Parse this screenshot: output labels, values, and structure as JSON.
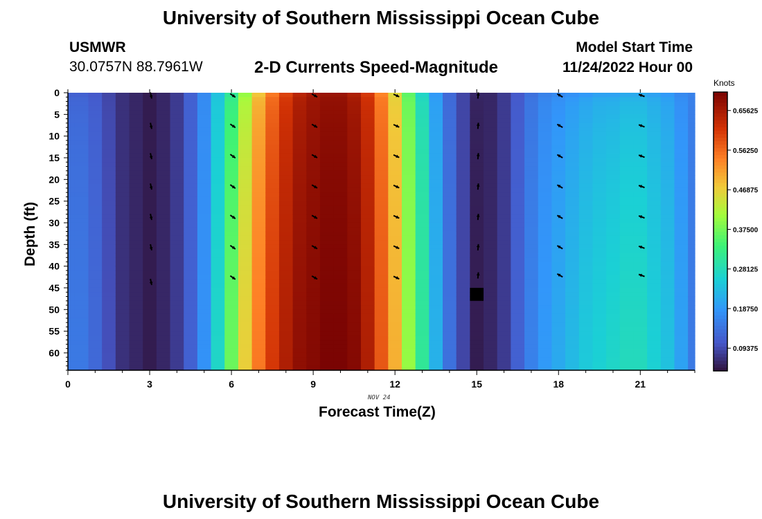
{
  "header": {
    "title": "University of Southern Mississippi Ocean Cube",
    "station_id": "USMWR",
    "station_coords": "30.0757N  88.7961W",
    "subtitle": "2-D Currents Speed-Magnitude",
    "model_start_label": "Model Start Time",
    "model_start_value": "11/24/2022 Hour 00"
  },
  "footer": {
    "title": "University of Southern Mississippi Ocean Cube"
  },
  "chart_data": {
    "type": "heatmap",
    "title": "2-D Currents Speed-Magnitude",
    "xlabel": "Forecast Time(Z)",
    "ylabel": "Depth (ft)",
    "date_label": "NOV 24",
    "colorbar_unit": "Knots",
    "x_ticks": [
      0,
      3,
      6,
      9,
      12,
      15,
      18,
      21
    ],
    "y_ticks": [
      0,
      5,
      10,
      15,
      20,
      25,
      30,
      35,
      40,
      45,
      50,
      55,
      60
    ],
    "xlim": [
      0,
      23
    ],
    "ylim": [
      64,
      0
    ],
    "colorbar_range": [
      0.04,
      0.7
    ],
    "colorbar_ticks": [
      "0.09375",
      "0.18750",
      "0.28125",
      "0.37500",
      "0.46875",
      "0.56250",
      "0.65625"
    ],
    "hours": [
      0,
      0.5,
      1,
      1.5,
      2,
      2.5,
      3,
      3.5,
      4,
      4.5,
      5,
      5.5,
      6,
      6.5,
      7,
      7.5,
      8,
      8.5,
      9,
      9.5,
      10,
      10.5,
      11,
      11.5,
      12,
      12.5,
      13,
      13.5,
      14,
      14.5,
      15,
      15.5,
      16,
      16.5,
      17,
      17.5,
      18,
      18.5,
      19,
      19.5,
      20,
      20.5,
      21,
      21.5,
      22,
      22.5,
      23
    ],
    "surface_speed_knots": [
      0.12,
      0.12,
      0.11,
      0.09,
      0.07,
      0.06,
      0.05,
      0.06,
      0.08,
      0.12,
      0.17,
      0.24,
      0.31,
      0.4,
      0.48,
      0.55,
      0.6,
      0.64,
      0.66,
      0.67,
      0.67,
      0.65,
      0.61,
      0.54,
      0.46,
      0.36,
      0.27,
      0.19,
      0.13,
      0.09,
      0.06,
      0.06,
      0.08,
      0.11,
      0.14,
      0.16,
      0.17,
      0.18,
      0.19,
      0.2,
      0.2,
      0.21,
      0.21,
      0.2,
      0.19,
      0.17,
      0.16
    ],
    "bottom_speed_knots": [
      0.15,
      0.15,
      0.13,
      0.1,
      0.07,
      0.06,
      0.05,
      0.06,
      0.08,
      0.12,
      0.18,
      0.27,
      0.37,
      0.47,
      0.55,
      0.61,
      0.65,
      0.68,
      0.69,
      0.7,
      0.7,
      0.69,
      0.65,
      0.58,
      0.5,
      0.4,
      0.31,
      0.22,
      0.14,
      0.09,
      0.05,
      0.06,
      0.08,
      0.12,
      0.16,
      0.19,
      0.21,
      0.23,
      0.25,
      0.26,
      0.27,
      0.28,
      0.28,
      0.26,
      0.24,
      0.2,
      0.15
    ],
    "missing_cells": [
      {
        "hour": 15,
        "depth_from": 45,
        "depth_to": 48
      }
    ],
    "vectors": {
      "hours": [
        3,
        6,
        9,
        12,
        15,
        18,
        21
      ],
      "depths": [
        0,
        7,
        14,
        21,
        28,
        35,
        42
      ],
      "direction_deg_math": [
        -78,
        -35,
        -30,
        -25,
        85,
        150,
        160
      ]
    }
  }
}
